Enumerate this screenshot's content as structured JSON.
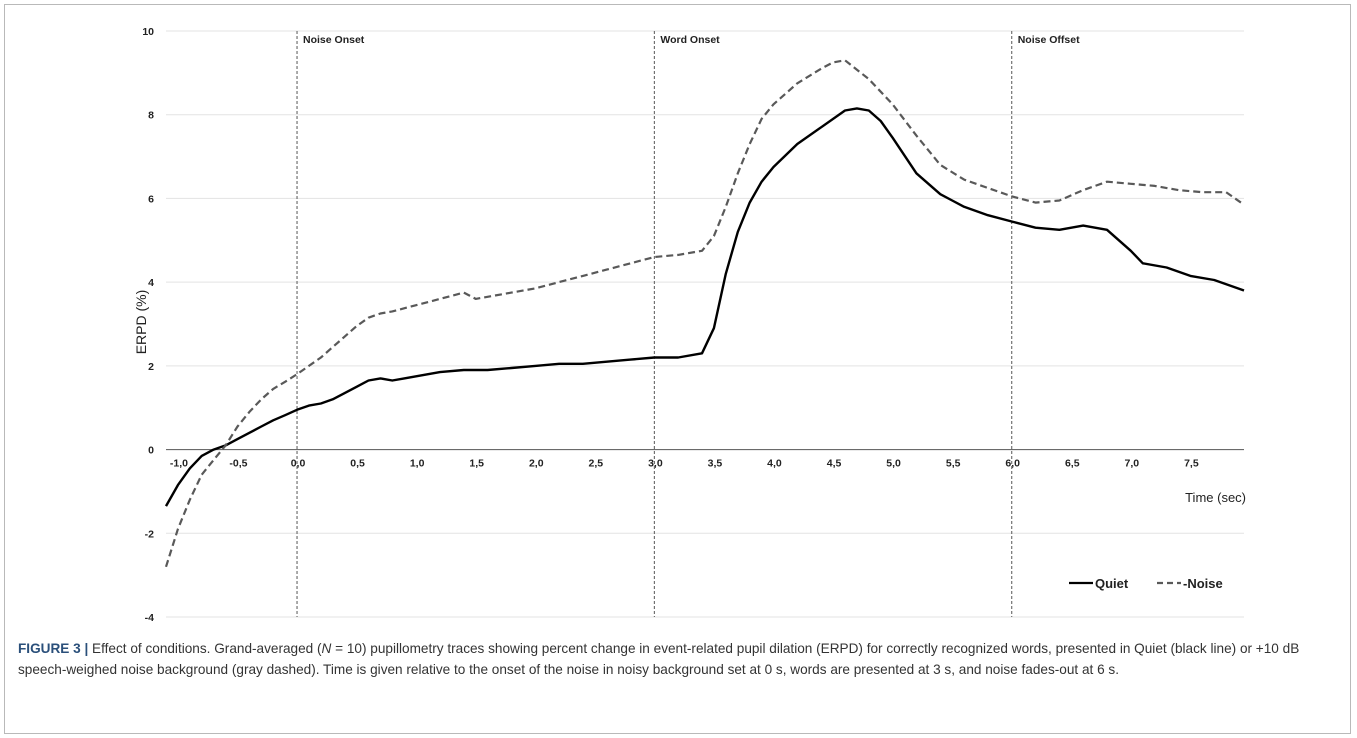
{
  "chart_data": {
    "type": "line",
    "ylabel": "ERPD (%)",
    "xlabel": "Time (sec)",
    "xlim": [
      -1.1,
      7.95
    ],
    "ylim": [
      -4,
      10
    ],
    "yticks": [
      -4,
      -2,
      0,
      2,
      4,
      6,
      8,
      10
    ],
    "ytick_labels": [
      "-4",
      "-2",
      "0",
      "2",
      "4",
      "6",
      "8",
      "10"
    ],
    "xticks": [
      -1.0,
      -0.5,
      0.0,
      0.5,
      1.0,
      1.5,
      2.0,
      2.5,
      3.0,
      3.5,
      4.0,
      4.5,
      5.0,
      5.5,
      6.0,
      6.5,
      7.0,
      7.5
    ],
    "xtick_labels": [
      "-1,0",
      "-0,5",
      "0,0",
      "0,5",
      "1,0",
      "1,5",
      "2,0",
      "2,5",
      "3,0",
      "3,5",
      "4,0",
      "4,5",
      "5,0",
      "5,5",
      "6,0",
      "6,5",
      "7,0",
      "7,5"
    ],
    "events": [
      {
        "x": 0.0,
        "label": "Noise Onset"
      },
      {
        "x": 3.0,
        "label": "Word Onset"
      },
      {
        "x": 6.0,
        "label": "Noise Offset"
      }
    ],
    "series": [
      {
        "name": "Quiet",
        "color": "#000000",
        "dash": "solid",
        "x": [
          -1.1,
          -1.0,
          -0.9,
          -0.8,
          -0.7,
          -0.6,
          -0.5,
          -0.4,
          -0.3,
          -0.2,
          -0.1,
          0.0,
          0.1,
          0.2,
          0.3,
          0.4,
          0.5,
          0.6,
          0.7,
          0.8,
          0.9,
          1.0,
          1.2,
          1.4,
          1.6,
          1.8,
          2.0,
          2.2,
          2.4,
          2.6,
          2.8,
          3.0,
          3.2,
          3.4,
          3.5,
          3.6,
          3.7,
          3.8,
          3.9,
          4.0,
          4.2,
          4.4,
          4.6,
          4.7,
          4.8,
          4.9,
          5.0,
          5.2,
          5.4,
          5.5,
          5.6,
          5.8,
          6.0,
          6.2,
          6.4,
          6.6,
          6.8,
          6.9,
          7.0,
          7.1,
          7.3,
          7.5,
          7.7,
          7.95
        ],
        "y": [
          -1.35,
          -0.85,
          -0.45,
          -0.15,
          0.0,
          0.1,
          0.25,
          0.4,
          0.55,
          0.7,
          0.82,
          0.95,
          1.05,
          1.1,
          1.2,
          1.35,
          1.5,
          1.65,
          1.7,
          1.65,
          1.7,
          1.75,
          1.85,
          1.9,
          1.9,
          1.95,
          2.0,
          2.05,
          2.05,
          2.1,
          2.15,
          2.2,
          2.2,
          2.3,
          2.9,
          4.2,
          5.2,
          5.9,
          6.4,
          6.75,
          7.3,
          7.7,
          8.1,
          8.15,
          8.1,
          7.85,
          7.45,
          6.6,
          6.1,
          5.95,
          5.8,
          5.6,
          5.45,
          5.3,
          5.25,
          5.35,
          5.25,
          5.0,
          4.75,
          4.45,
          4.35,
          4.15,
          4.05,
          3.8
        ]
      },
      {
        "name": "Noise",
        "color": "#595959",
        "dash": "dashed",
        "x": [
          -1.1,
          -1.0,
          -0.9,
          -0.8,
          -0.7,
          -0.6,
          -0.5,
          -0.4,
          -0.3,
          -0.2,
          -0.1,
          0.0,
          0.1,
          0.2,
          0.3,
          0.4,
          0.5,
          0.6,
          0.7,
          0.8,
          1.0,
          1.2,
          1.4,
          1.5,
          1.6,
          1.8,
          2.0,
          2.2,
          2.4,
          2.6,
          2.8,
          3.0,
          3.2,
          3.4,
          3.5,
          3.6,
          3.7,
          3.8,
          3.9,
          4.0,
          4.2,
          4.4,
          4.5,
          4.6,
          4.8,
          5.0,
          5.2,
          5.4,
          5.6,
          5.8,
          6.0,
          6.2,
          6.4,
          6.6,
          6.8,
          7.0,
          7.2,
          7.4,
          7.6,
          7.8,
          7.95
        ],
        "y": [
          -2.8,
          -1.9,
          -1.2,
          -0.6,
          -0.25,
          0.1,
          0.55,
          0.9,
          1.2,
          1.45,
          1.62,
          1.8,
          2.0,
          2.2,
          2.45,
          2.7,
          2.95,
          3.15,
          3.25,
          3.3,
          3.45,
          3.6,
          3.75,
          3.6,
          3.65,
          3.75,
          3.85,
          4.0,
          4.15,
          4.3,
          4.45,
          4.6,
          4.65,
          4.75,
          5.1,
          5.8,
          6.6,
          7.3,
          7.9,
          8.25,
          8.75,
          9.1,
          9.25,
          9.3,
          8.85,
          8.25,
          7.5,
          6.8,
          6.45,
          6.25,
          6.05,
          5.9,
          5.95,
          6.2,
          6.4,
          6.35,
          6.3,
          6.2,
          6.15,
          6.15,
          5.85
        ]
      }
    ]
  },
  "caption": {
    "label": "FIGURE 3 |",
    "part1": " Effect of conditions. Grand-averaged (",
    "n_italic": "N",
    "part2": " = 10) pupillometry traces showing percent change in event-related pupil dilation (ERPD) for correctly recognized words, presented in Quiet (black line) or +10 dB speech-weighed noise background (gray dashed). Time is given relative to the onset of the noise in noisy background set at 0 s, words are presented at 3 s, and noise fades-out at 6 s."
  }
}
